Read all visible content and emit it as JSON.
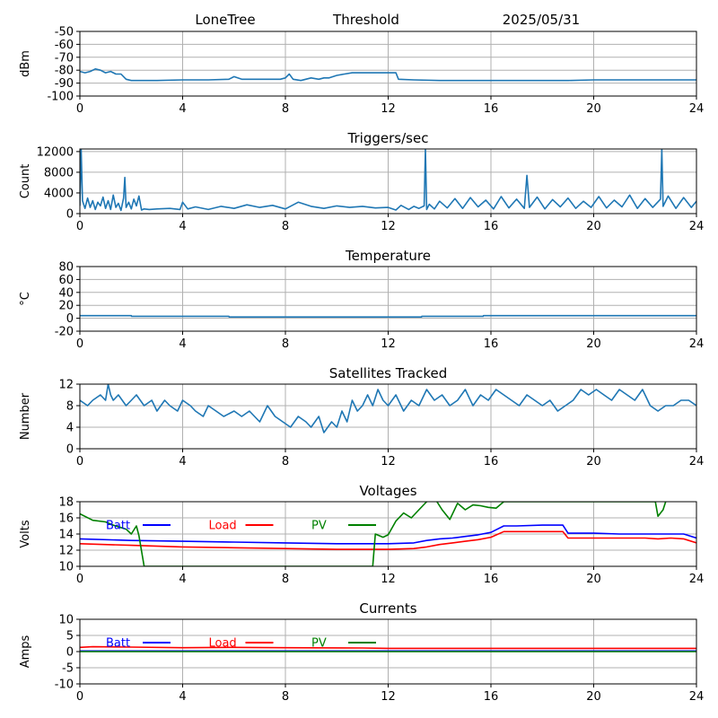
{
  "header": {
    "station": "LoneTree",
    "mode": "Threshold",
    "date": "2025/05/31"
  },
  "colors": {
    "series_default": "#1f77b4",
    "batt": "#0000ff",
    "load": "#ff0000",
    "pv": "#008000",
    "grid": "#b0b0b0"
  },
  "chart_data": [
    {
      "type": "line",
      "title": "",
      "ylabel": "dBm",
      "xlim": [
        0,
        24
      ],
      "ylim": [
        -100,
        -50
      ],
      "xticks": [
        0,
        4,
        8,
        12,
        16,
        20,
        24
      ],
      "yticks": [
        -100,
        -90,
        -80,
        -70,
        -60,
        -50
      ],
      "grid": true,
      "series": [
        {
          "color": "#1f77b4",
          "x": [
            0,
            0.2,
            0.4,
            0.6,
            0.8,
            1.0,
            1.2,
            1.4,
            1.6,
            1.8,
            2.0,
            2.5,
            3,
            4,
            5,
            5.8,
            6.0,
            6.3,
            7,
            7.8,
            8.0,
            8.15,
            8.3,
            8.6,
            9,
            9.3,
            9.5,
            9.7,
            10,
            10.3,
            10.6,
            11,
            11.5,
            12,
            12.3,
            12.4,
            13,
            14,
            15,
            16,
            17,
            18,
            19,
            20,
            21,
            22,
            23,
            24
          ],
          "y": [
            -81,
            -82,
            -81,
            -79,
            -80,
            -82,
            -81,
            -83,
            -83,
            -87,
            -88,
            -88,
            -88,
            -87.5,
            -87.5,
            -87,
            -85,
            -87,
            -87,
            -87,
            -86,
            -83,
            -87,
            -88,
            -86,
            -87,
            -86,
            -86,
            -84,
            -83,
            -82,
            -82,
            -82,
            -82,
            -82,
            -87,
            -87.5,
            -88,
            -88,
            -88,
            -88,
            -88,
            -88,
            -87.5,
            -87.5,
            -87.5,
            -87.5,
            -87.5
          ]
        }
      ]
    },
    {
      "type": "line",
      "title": "Triggers/sec",
      "ylabel": "Count",
      "xlim": [
        0,
        24
      ],
      "ylim": [
        0,
        12500
      ],
      "xticks": [
        0,
        4,
        8,
        12,
        16,
        20,
        24
      ],
      "yticks": [
        0,
        4000,
        8000,
        12000
      ],
      "grid": true,
      "series": [
        {
          "color": "#1f77b4",
          "x": [
            0,
            0.05,
            0.1,
            0.2,
            0.3,
            0.4,
            0.5,
            0.6,
            0.7,
            0.8,
            0.9,
            1.0,
            1.1,
            1.2,
            1.3,
            1.4,
            1.5,
            1.6,
            1.7,
            1.75,
            1.8,
            1.9,
            2.0,
            2.1,
            2.2,
            2.3,
            2.4,
            2.5,
            2.7,
            3.0,
            3.5,
            3.9,
            4.0,
            4.2,
            4.5,
            5,
            5.5,
            6,
            6.5,
            7,
            7.5,
            8,
            8.5,
            9,
            9.5,
            10,
            10.5,
            11,
            11.5,
            12,
            12.3,
            12.5,
            12.8,
            13,
            13.2,
            13.4,
            13.45,
            13.5,
            13.6,
            13.8,
            14,
            14.3,
            14.6,
            14.9,
            15.2,
            15.5,
            15.8,
            16.1,
            16.4,
            16.7,
            17.0,
            17.3,
            17.4,
            17.5,
            17.8,
            18.1,
            18.4,
            18.7,
            19.0,
            19.3,
            19.6,
            19.9,
            20.2,
            20.5,
            20.8,
            21.1,
            21.4,
            21.7,
            22.0,
            22.3,
            22.6,
            22.65,
            22.7,
            22.9,
            23.2,
            23.5,
            23.8,
            24
          ],
          "y": [
            1500,
            12500,
            2500,
            1000,
            3000,
            1200,
            2500,
            800,
            2200,
            1500,
            3200,
            1000,
            2500,
            800,
            3600,
            1200,
            2000,
            600,
            3000,
            7000,
            1200,
            2200,
            900,
            2800,
            1500,
            3400,
            700,
            900,
            800,
            900,
            1000,
            800,
            2200,
            900,
            1300,
            800,
            1400,
            1000,
            1700,
            1200,
            1600,
            900,
            2200,
            1400,
            1000,
            1500,
            1200,
            1400,
            1100,
            1200,
            700,
            1600,
            800,
            1400,
            1000,
            1500,
            12500,
            800,
            1800,
            900,
            2400,
            1100,
            2900,
            1000,
            3100,
            1300,
            2600,
            900,
            3300,
            1100,
            2800,
            1000,
            7400,
            1200,
            3200,
            900,
            2700,
            1300,
            3000,
            1000,
            2400,
            1200,
            3300,
            1100,
            2600,
            1300,
            3600,
            1000,
            2900,
            1200,
            2800,
            12500,
            1400,
            3400,
            1000,
            3100,
            1200,
            2400
          ]
        }
      ]
    },
    {
      "type": "line",
      "title": "Temperature",
      "ylabel": "°C",
      "xlim": [
        0,
        24
      ],
      "ylim": [
        -20,
        80
      ],
      "xticks": [
        0,
        4,
        8,
        12,
        16,
        20,
        24
      ],
      "yticks": [
        -20,
        0,
        20,
        40,
        60,
        80
      ],
      "grid": true,
      "series": [
        {
          "color": "#1f77b4",
          "x": [
            0,
            2,
            2.01,
            5.8,
            5.81,
            13.3,
            13.31,
            15.7,
            15.71,
            24
          ],
          "y": [
            4,
            4,
            3,
            3,
            2,
            2,
            3,
            3,
            4,
            4
          ]
        }
      ]
    },
    {
      "type": "line",
      "title": "Satellites Tracked",
      "ylabel": "Number",
      "xlim": [
        0,
        24
      ],
      "ylim": [
        0,
        12
      ],
      "xticks": [
        0,
        4,
        8,
        12,
        16,
        20,
        24
      ],
      "yticks": [
        0,
        4,
        8,
        12
      ],
      "grid": true,
      "series": [
        {
          "color": "#1f77b4",
          "x": [
            0,
            0.3,
            0.5,
            0.8,
            1.0,
            1.1,
            1.2,
            1.3,
            1.5,
            1.8,
            2.0,
            2.2,
            2.5,
            2.8,
            3.0,
            3.3,
            3.5,
            3.8,
            4.0,
            4.3,
            4.5,
            4.8,
            5.0,
            5.3,
            5.6,
            6.0,
            6.3,
            6.6,
            7.0,
            7.3,
            7.6,
            7.9,
            8.2,
            8.5,
            8.8,
            9.0,
            9.3,
            9.5,
            9.8,
            10.0,
            10.2,
            10.4,
            10.6,
            10.8,
            11.0,
            11.2,
            11.4,
            11.6,
            11.8,
            12.0,
            12.3,
            12.6,
            12.9,
            13.2,
            13.5,
            13.8,
            14.1,
            14.4,
            14.7,
            15.0,
            15.3,
            15.6,
            15.9,
            16.2,
            16.5,
            16.8,
            17.1,
            17.4,
            17.7,
            18.0,
            18.3,
            18.6,
            18.9,
            19.2,
            19.5,
            19.8,
            20.1,
            20.4,
            20.7,
            21.0,
            21.3,
            21.6,
            21.9,
            22.2,
            22.5,
            22.8,
            23.1,
            23.4,
            23.7,
            24.0
          ],
          "y": [
            9,
            8,
            9,
            10,
            9,
            12,
            10,
            9,
            10,
            8,
            9,
            10,
            8,
            9,
            7,
            9,
            8,
            7,
            9,
            8,
            7,
            6,
            8,
            7,
            6,
            7,
            6,
            7,
            5,
            8,
            6,
            5,
            4,
            6,
            5,
            4,
            6,
            3,
            5,
            4,
            7,
            5,
            9,
            7,
            8,
            10,
            8,
            11,
            9,
            8,
            10,
            7,
            9,
            8,
            11,
            9,
            10,
            8,
            9,
            11,
            8,
            10,
            9,
            11,
            10,
            9,
            8,
            10,
            9,
            8,
            9,
            7,
            8,
            9,
            11,
            10,
            11,
            10,
            9,
            11,
            10,
            9,
            11,
            8,
            7,
            8,
            8,
            9,
            9,
            8
          ]
        }
      ]
    },
    {
      "type": "line",
      "title": "Voltages",
      "ylabel": "Volts",
      "xlim": [
        0,
        24
      ],
      "ylim": [
        10,
        18
      ],
      "xticks": [
        0,
        4,
        8,
        12,
        16,
        20,
        24
      ],
      "yticks": [
        10,
        12,
        14,
        16,
        18
      ],
      "grid": true,
      "legend_position": "top",
      "series": [
        {
          "name": "Batt",
          "color": "#0000ff",
          "x": [
            0,
            2,
            4,
            6,
            8,
            10,
            11,
            12,
            13,
            13.5,
            14,
            14.5,
            15,
            15.5,
            16,
            16.5,
            17,
            18,
            18.8,
            19.0,
            20,
            21,
            22,
            22.5,
            23,
            23.5,
            24
          ],
          "y": [
            13.4,
            13.2,
            13.1,
            13.0,
            12.9,
            12.8,
            12.8,
            12.8,
            12.9,
            13.2,
            13.4,
            13.5,
            13.7,
            13.9,
            14.2,
            15.0,
            15.0,
            15.1,
            15.1,
            14.1,
            14.1,
            14.0,
            14.0,
            14.0,
            14.0,
            14.0,
            13.5
          ]
        },
        {
          "name": "Load",
          "color": "#ff0000",
          "x": [
            0,
            2,
            4,
            6,
            8,
            10,
            12,
            13,
            13.5,
            14,
            14.5,
            15,
            15.5,
            16,
            16.5,
            17,
            18,
            18.8,
            19.0,
            20,
            21,
            22,
            22.5,
            23,
            23.5,
            24
          ],
          "y": [
            12.8,
            12.6,
            12.4,
            12.3,
            12.2,
            12.1,
            12.1,
            12.2,
            12.4,
            12.7,
            12.9,
            13.1,
            13.3,
            13.6,
            14.3,
            14.3,
            14.3,
            14.3,
            13.5,
            13.5,
            13.5,
            13.5,
            13.4,
            13.5,
            13.4,
            12.9
          ]
        },
        {
          "name": "PV",
          "color": "#008000",
          "x": [
            0,
            0.5,
            1.0,
            1.3,
            1.6,
            1.8,
            2.0,
            2.2,
            2.3,
            2.5,
            11.4,
            11.5,
            11.8,
            12.0,
            12.3,
            12.6,
            12.9,
            13.2,
            13.5,
            13.8,
            14.1,
            14.4,
            14.7,
            15.0,
            15.3,
            15.6,
            15.9,
            16.2,
            16.5,
            22.4,
            22.5,
            22.7,
            22.8
          ],
          "y": [
            16.5,
            15.7,
            15.5,
            15.1,
            14.8,
            14.6,
            14.0,
            15.0,
            13.8,
            10.0,
            10.0,
            14.0,
            13.6,
            13.9,
            15.6,
            16.6,
            16.0,
            17.0,
            18.0,
            18.5,
            17.0,
            15.8,
            17.8,
            17.0,
            17.6,
            17.5,
            17.3,
            17.2,
            18.0,
            18.0,
            16.2,
            17.0,
            18.0
          ]
        }
      ]
    },
    {
      "type": "line",
      "title": "Currents",
      "ylabel": "Amps",
      "xlim": [
        0,
        24
      ],
      "ylim": [
        -10,
        10
      ],
      "xticks": [
        0,
        4,
        8,
        12,
        16,
        20,
        24
      ],
      "yticks": [
        -10,
        -5,
        0,
        5,
        10
      ],
      "grid": true,
      "legend_position": "top",
      "series": [
        {
          "name": "Batt",
          "color": "#0000ff",
          "x": [
            0,
            24
          ],
          "y": [
            0.2,
            0.2
          ]
        },
        {
          "name": "Load",
          "color": "#ff0000",
          "x": [
            0,
            0.5,
            2,
            4,
            6,
            8,
            11,
            12,
            16,
            20,
            24
          ],
          "y": [
            1.3,
            1.5,
            1.4,
            1.2,
            1.3,
            1.2,
            1.1,
            1.0,
            1.0,
            1.0,
            1.0
          ]
        },
        {
          "name": "PV",
          "color": "#008000",
          "x": [
            0,
            24
          ],
          "y": [
            0,
            0
          ]
        }
      ]
    }
  ]
}
